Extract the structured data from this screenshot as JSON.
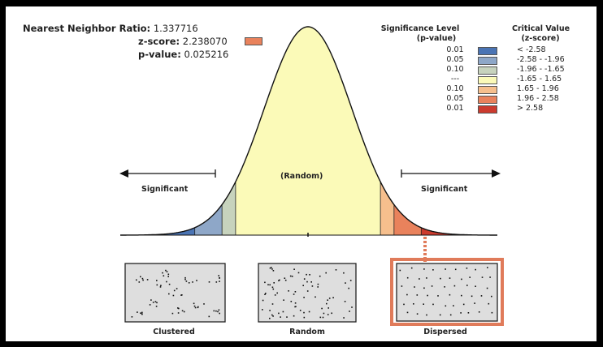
{
  "stats": {
    "ratio_label": "Nearest Neighbor Ratio:",
    "ratio_value": "1.337716",
    "z_label": "z-score:",
    "z_value": "2.238070",
    "p_label": "p-value:",
    "p_value": "0.025216",
    "z_swatch_color": "#e9825c"
  },
  "legend": {
    "sig_title_line1": "Significance Level",
    "sig_title_line2": "(p-value)",
    "crit_title_line1": "Critical Value",
    "crit_title_line2": "(z-score)",
    "rows": [
      {
        "p": "0.01",
        "z": "< -2.58",
        "color": "#4a74b4"
      },
      {
        "p": "0.05",
        "z": "-2.58 - -1.96",
        "color": "#8ea7c8"
      },
      {
        "p": "0.10",
        "z": "-1.96 - -1.65",
        "color": "#c7d3bd"
      },
      {
        "p": "---",
        "z": "-1.65 - 1.65",
        "color": "#fbfab8"
      },
      {
        "p": "0.10",
        "z": "1.65 - 1.96",
        "color": "#f6bf8d"
      },
      {
        "p": "0.05",
        "z": "1.96 - 2.58",
        "color": "#e9825c"
      },
      {
        "p": "0.01",
        "z": "> 2.58",
        "color": "#cc3b2e"
      }
    ]
  },
  "curve": {
    "random_label": "(Random)",
    "left_label": "Significant",
    "right_label": "Significant"
  },
  "patterns": {
    "clustered": "Clustered",
    "random": "Random",
    "dispersed": "Dispersed",
    "highlight_color": "#e07b5a"
  }
}
